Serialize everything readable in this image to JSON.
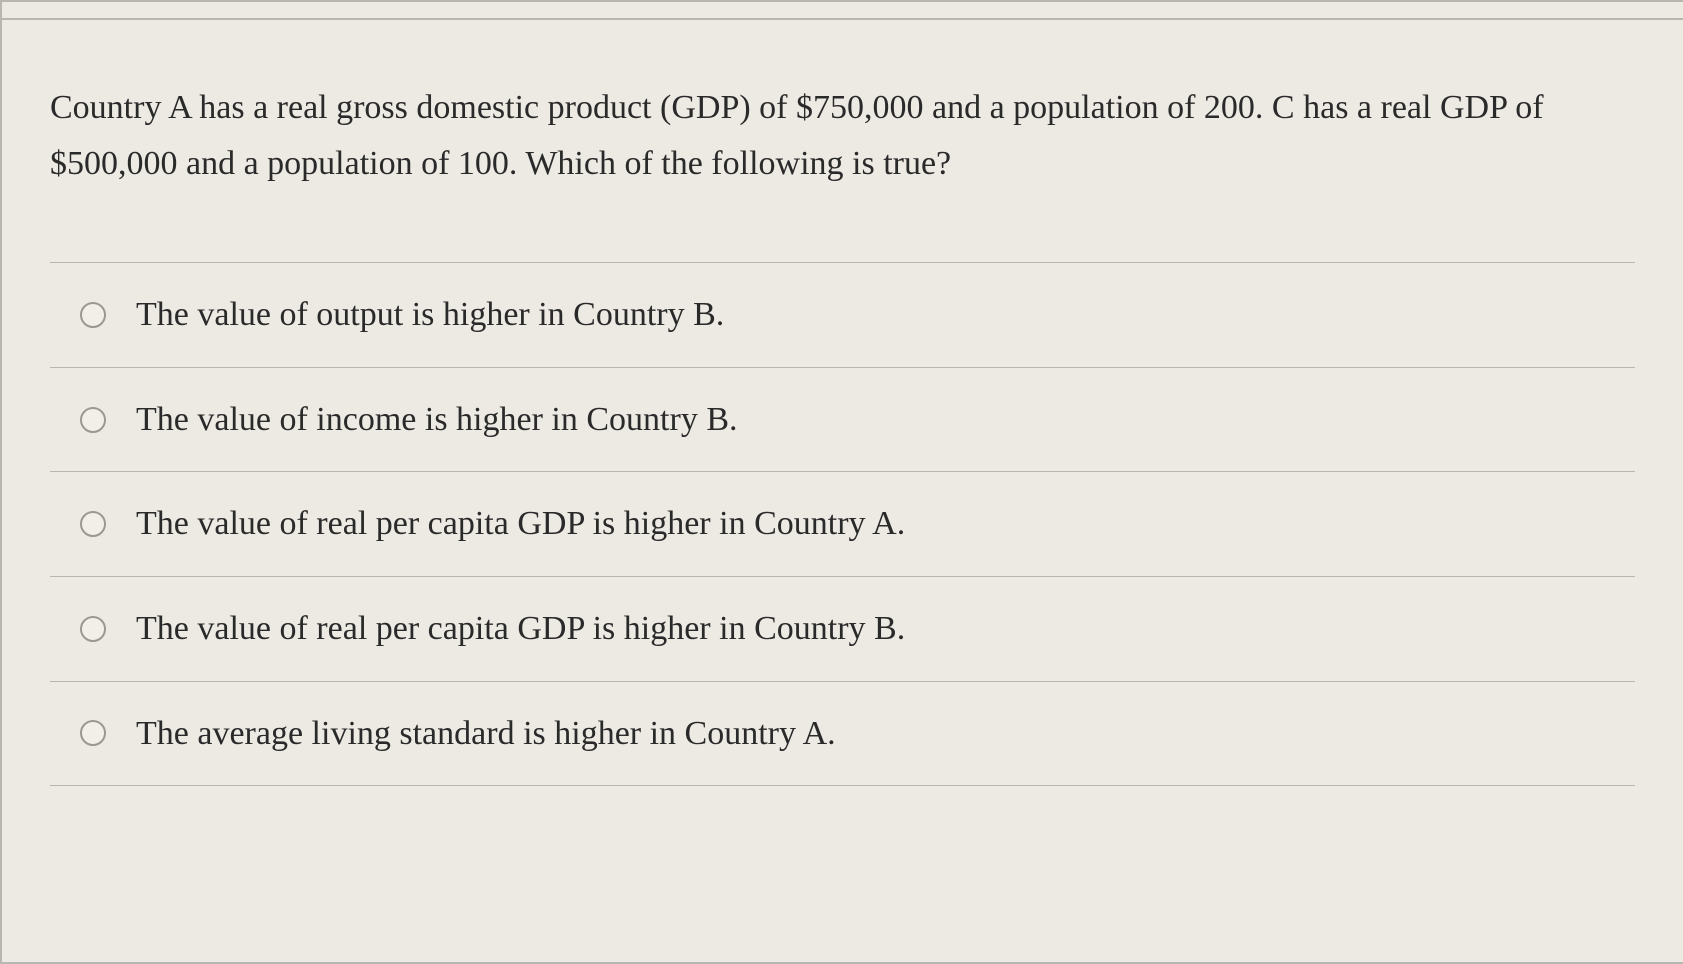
{
  "question": {
    "text": "Country A has a real gross domestic product (GDP) of $750,000 and a population of 200. C has a real GDP of $500,000 and a population of 100. Which of the following is true?"
  },
  "options": [
    {
      "label": "The value of output is higher in Country B."
    },
    {
      "label": "The value of income is higher in Country B."
    },
    {
      "label": "The value of real per capita GDP is higher in Country A."
    },
    {
      "label": "The value of real per capita GDP is higher in Country B."
    },
    {
      "label": "The average living standard is higher in Country A."
    }
  ],
  "colors": {
    "background": "#edeae4",
    "border": "#b8b6b0",
    "text": "#2a2a2a",
    "radio_border": "#9a9892"
  },
  "typography": {
    "font_family": "Georgia, Times New Roman, serif",
    "question_fontsize": 34,
    "option_fontsize": 34
  }
}
